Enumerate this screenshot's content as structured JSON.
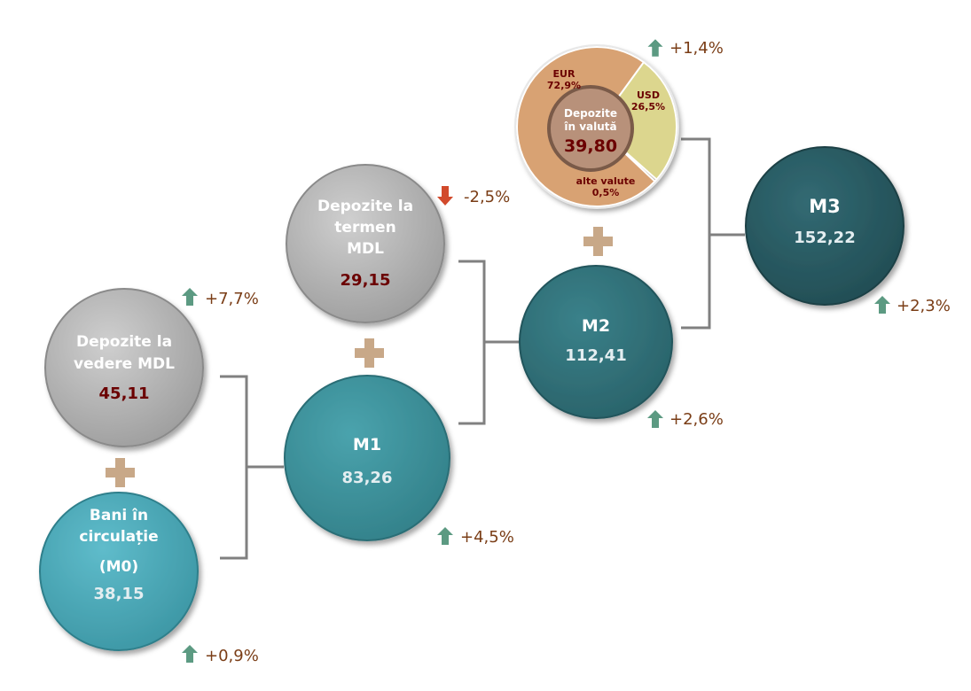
{
  "colors": {
    "gray": "#b0b0b0",
    "teal_light": "#4ca9b8",
    "teal_mid": "#3e939d",
    "teal_dark": "#317179",
    "teal_darkest": "#2a5961",
    "up_arrow": "#5c9a82",
    "down_arrow": "#d24a2c",
    "plus": "#c8a888",
    "bracket": "#808080",
    "eur": "#d8a273",
    "usd": "#dcd68e"
  },
  "nodes": {
    "dep_termen": {
      "line1": "Depozite la",
      "line2": "termen",
      "line3": "MDL",
      "value": "29,15",
      "change": "-2,5%",
      "direction": "down",
      "arrow_icon": "arrow-down-icon"
    },
    "dep_vedere": {
      "line1": "Depozite la",
      "line2": "vedere MDL",
      "value": "45,11",
      "change": "+7,7%",
      "direction": "up",
      "arrow_icon": "arrow-up-icon"
    },
    "bani": {
      "line1": "Bani în",
      "line2": "circulație",
      "line3": "(M0)",
      "value": "38,15",
      "change": "+0,9%",
      "direction": "up",
      "arrow_icon": "arrow-up-icon"
    },
    "m1": {
      "label": "M1",
      "value": "83,26",
      "change": "+4,5%",
      "direction": "up",
      "arrow_icon": "arrow-up-icon"
    },
    "m2": {
      "label": "M2",
      "value": "112,41",
      "change": "+2,6%",
      "direction": "up",
      "arrow_icon": "arrow-up-icon"
    },
    "m3": {
      "label": "M3",
      "value": "152,22",
      "change": "+2,3%",
      "direction": "up",
      "arrow_icon": "arrow-up-icon"
    }
  },
  "valuta": {
    "line1": "Depozite",
    "line2": "în valută",
    "value": "39,80",
    "change": "+1,4%",
    "direction": "up",
    "arrow_icon": "arrow-up-icon",
    "slices": [
      {
        "name": "EUR",
        "percent": "72,9%",
        "share": 72.9,
        "color": "#d8a273"
      },
      {
        "name": "USD",
        "percent": "26,5%",
        "share": 26.5,
        "color": "#dcd68e"
      },
      {
        "name": "alte valute",
        "percent": "0,5%",
        "share": 0.5,
        "color": "#a89a8a"
      }
    ]
  }
}
